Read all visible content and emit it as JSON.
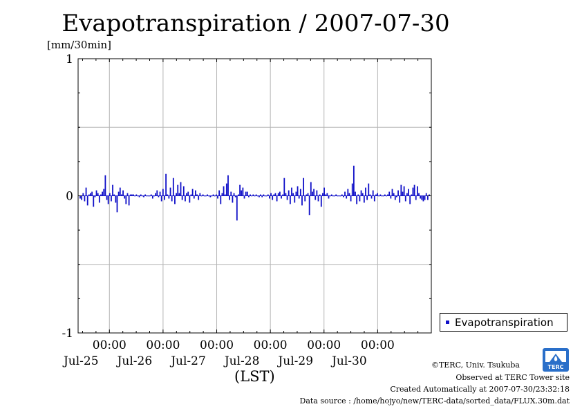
{
  "title": "Evapotranspiration / 2007-07-30",
  "unit_label": "[mm/30min]",
  "x_axis_label": "(LST)",
  "legend": {
    "label": "Evapotranspiration"
  },
  "logo_text": "TERC",
  "credits": {
    "org": "©TERC, Univ. Tsukuba",
    "observed": "Observed at TERC Tower site",
    "created": "Created Automatically at 2007-07-30/23:32:18",
    "source": "Data source : /home/hojyo/new/TERC-data/sorted_data/FLUX.30m.dat"
  },
  "colors": {
    "series": "#1010c8",
    "grid": "#b4b4b4",
    "frame": "#000000"
  },
  "chart_data": {
    "type": "bar",
    "title": "Evapotranspiration / 2007-07-30",
    "ylabel": "[mm/30min]",
    "xlabel": "(LST)",
    "ylim": [
      -1,
      1
    ],
    "y_ticks": [
      -1,
      0,
      1
    ],
    "x_range_days": [
      "2007-07-24T10:00",
      "2007-07-30T24:00"
    ],
    "x_ticks": [
      {
        "time": "00:00",
        "date": "Jul-25"
      },
      {
        "time": "00:00",
        "date": "Jul-26"
      },
      {
        "time": "00:00",
        "date": "Jul-27"
      },
      {
        "time": "00:00",
        "date": "Jul-28"
      },
      {
        "time": "00:00",
        "date": "Jul-29"
      },
      {
        "time": "00:00",
        "date": "Jul-30"
      }
    ],
    "grid": true,
    "legend_position": "bottom-right, outside plot",
    "series": [
      {
        "name": "Evapotranspiration",
        "color": "#1010c8",
        "values": [
          -0.02,
          -0.03,
          0.02,
          -0.04,
          0.06,
          -0.07,
          0.01,
          0.02,
          0.03,
          -0.08,
          -0.01,
          0.04,
          0.02,
          -0.05,
          0.01,
          0.03,
          0.05,
          0.15,
          -0.03,
          -0.06,
          0.02,
          -0.04,
          0.08,
          0.01,
          -0.05,
          -0.12,
          0.03,
          0.06,
          0.01,
          0.04,
          -0.02,
          -0.06,
          0.02,
          -0.07,
          0.01,
          0.01,
          0.01,
          0.0,
          0.01,
          0.0,
          -0.01,
          0.01,
          0.0,
          -0.01,
          0.01,
          0.0,
          0.0,
          0.0,
          0.01,
          -0.02,
          0.0,
          0.02,
          0.04,
          -0.01,
          0.03,
          -0.04,
          0.05,
          -0.03,
          0.16,
          0.01,
          -0.02,
          0.06,
          -0.04,
          0.13,
          -0.06,
          0.02,
          0.08,
          0.02,
          0.1,
          -0.03,
          0.07,
          -0.04,
          0.02,
          0.03,
          -0.05,
          0.01,
          0.05,
          -0.02,
          0.04,
          0.01,
          -0.03,
          0.02,
          0.0,
          0.01,
          0.0,
          0.0,
          0.01,
          0.0,
          -0.01,
          0.0,
          0.01,
          0.0,
          0.01,
          -0.02,
          0.04,
          -0.06,
          0.02,
          0.07,
          0.01,
          0.09,
          0.15,
          -0.03,
          0.03,
          -0.05,
          0.02,
          -0.01,
          -0.18,
          0.01,
          0.08,
          0.04,
          0.06,
          -0.02,
          0.03,
          0.03,
          -0.01,
          0.01,
          0.0,
          0.01,
          0.0,
          0.01,
          0.0,
          -0.01,
          0.01,
          -0.01,
          0.01,
          0.0,
          0.0,
          0.01,
          -0.02,
          0.02,
          -0.03,
          0.01,
          0.02,
          -0.04,
          0.02,
          0.03,
          -0.02,
          0.01,
          0.13,
          0.02,
          -0.03,
          0.04,
          -0.06,
          0.06,
          0.02,
          -0.05,
          0.03,
          0.07,
          -0.02,
          0.05,
          -0.07,
          0.13,
          -0.04,
          0.01,
          0.02,
          -0.14,
          0.1,
          0.03,
          0.05,
          -0.03,
          0.04,
          -0.04,
          0.01,
          -0.08,
          0.02,
          0.06,
          0.01,
          0.02,
          -0.02,
          0.0,
          0.01,
          0.0,
          0.0,
          0.01,
          0.0,
          0.0,
          0.0,
          0.01,
          -0.01,
          0.03,
          -0.02,
          0.05,
          0.02,
          -0.04,
          0.09,
          0.22,
          0.03,
          -0.06,
          0.01,
          -0.04,
          0.04,
          0.02,
          -0.05,
          0.06,
          -0.03,
          0.09,
          0.01,
          -0.02,
          0.04,
          -0.04,
          0.01,
          0.02,
          0.0,
          0.01,
          0.0,
          0.0,
          0.01,
          0.0,
          0.01,
          0.03,
          -0.02,
          0.05,
          0.02,
          -0.03,
          -0.01,
          0.04,
          -0.05,
          0.08,
          0.03,
          0.07,
          -0.04,
          0.02,
          0.05,
          -0.06,
          0.01,
          0.06,
          0.08,
          -0.03,
          0.07,
          0.02,
          -0.02,
          -0.03,
          -0.04,
          -0.03,
          0.02,
          -0.03,
          0.01
        ]
      }
    ]
  }
}
